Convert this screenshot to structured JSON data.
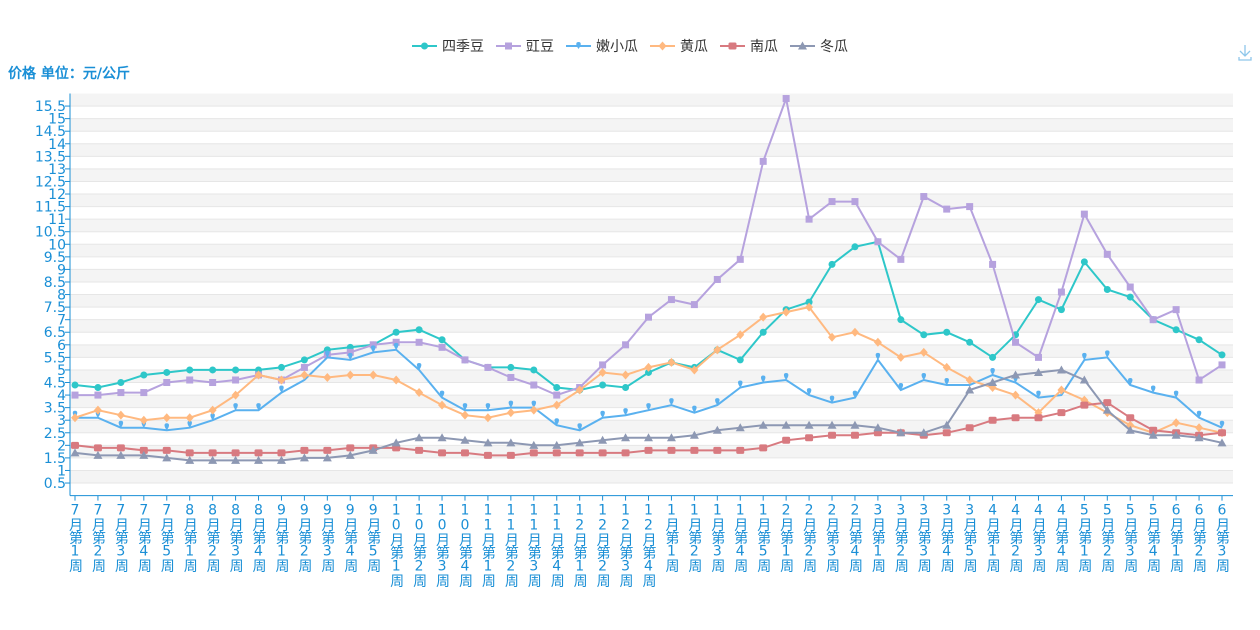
{
  "chart_data": {
    "type": "line",
    "y_axis_label": "价格 单位：元/公斤",
    "legend": "top",
    "grid": true,
    "ylim": [
      0,
      16
    ],
    "yticks": [
      0.5,
      1,
      1.5,
      2,
      2.5,
      3,
      3.5,
      4,
      4.5,
      5,
      5.5,
      6,
      6.5,
      7,
      7.5,
      8,
      8.5,
      9,
      9.5,
      10,
      10.5,
      11,
      11.5,
      12,
      12.5,
      13,
      13.5,
      14,
      14.5,
      15,
      15.5
    ],
    "categories": [
      "7月第1周",
      "7月第2周",
      "7月第3周",
      "7月第4周",
      "7月第5周",
      "8月第1周",
      "8月第2周",
      "8月第3周",
      "8月第4周",
      "9月第1周",
      "9月第2周",
      "9月第3周",
      "9月第4周",
      "9月第5周",
      "10月第1周",
      "10月第2周",
      "10月第3周",
      "10月第4周",
      "11月第1周",
      "11月第2周",
      "11月第3周",
      "11月第4周",
      "12月第1周",
      "12月第2周",
      "12月第3周",
      "12月第4周",
      "1月第1周",
      "1月第2周",
      "1月第3周",
      "1月第4周",
      "1月第5周",
      "2月第1周",
      "2月第2周",
      "2月第3周",
      "2月第4周",
      "3月第1周",
      "3月第2周",
      "3月第3周",
      "3月第4周",
      "3月第5周",
      "4月第1周",
      "4月第2周",
      "4月第3周",
      "4月第4周",
      "5月第1周",
      "5月第2周",
      "5月第3周",
      "5月第4周",
      "6月第1周",
      "6月第2周",
      "6月第3周"
    ],
    "series": [
      {
        "name": "四季豆",
        "color": "#2ec7c9",
        "marker": "circle",
        "values": [
          4.4,
          4.3,
          4.5,
          4.8,
          4.9,
          5.0,
          5.0,
          5.0,
          5.0,
          5.1,
          5.4,
          5.8,
          5.9,
          6.0,
          6.5,
          6.6,
          6.2,
          5.4,
          5.1,
          5.1,
          5.0,
          4.3,
          4.2,
          4.4,
          4.3,
          4.9,
          5.3,
          5.1,
          5.8,
          5.4,
          6.5,
          7.4,
          7.7,
          9.2,
          9.9,
          10.1,
          7.0,
          6.4,
          6.5,
          6.1,
          5.5,
          6.4,
          7.8,
          7.4,
          9.3,
          8.2,
          7.9,
          7.0,
          6.6,
          6.2,
          5.6
        ]
      },
      {
        "name": "豇豆",
        "color": "#b6a2de",
        "marker": "rect",
        "values": [
          4.0,
          4.0,
          4.1,
          4.1,
          4.5,
          4.6,
          4.5,
          4.6,
          4.8,
          4.6,
          5.1,
          5.6,
          5.7,
          6.0,
          6.1,
          6.1,
          5.9,
          5.4,
          5.1,
          4.7,
          4.4,
          4.0,
          4.3,
          5.2,
          6.0,
          7.1,
          7.8,
          7.6,
          8.6,
          9.4,
          13.3,
          15.8,
          11.0,
          11.7,
          11.7,
          10.1,
          9.4,
          11.9,
          11.4,
          11.5,
          9.2,
          6.1,
          5.5,
          8.1,
          11.2,
          9.6,
          8.3,
          7.0,
          7.4,
          4.6,
          5.2
        ]
      },
      {
        "name": "嫩小瓜",
        "color": "#5ab1ef",
        "marker": "pin",
        "values": [
          3.1,
          3.1,
          2.7,
          2.7,
          2.6,
          2.7,
          3.0,
          3.4,
          3.4,
          4.1,
          4.6,
          5.5,
          5.4,
          5.7,
          5.8,
          5.0,
          3.9,
          3.4,
          3.4,
          3.5,
          3.5,
          2.8,
          2.6,
          3.1,
          3.2,
          3.4,
          3.6,
          3.3,
          3.6,
          4.3,
          4.5,
          4.6,
          4.0,
          3.7,
          3.9,
          5.4,
          4.2,
          4.6,
          4.4,
          4.4,
          4.8,
          4.5,
          3.9,
          4.0,
          5.4,
          5.5,
          4.4,
          4.1,
          3.9,
          3.1,
          2.7
        ]
      },
      {
        "name": "黄瓜",
        "color": "#ffb980",
        "marker": "diamond",
        "values": [
          3.1,
          3.4,
          3.2,
          3.0,
          3.1,
          3.1,
          3.4,
          4.0,
          4.8,
          4.6,
          4.8,
          4.7,
          4.8,
          4.8,
          4.6,
          4.1,
          3.6,
          3.2,
          3.1,
          3.3,
          3.4,
          3.6,
          4.2,
          4.9,
          4.8,
          5.1,
          5.3,
          5.0,
          5.8,
          6.4,
          7.1,
          7.3,
          7.5,
          6.3,
          6.5,
          6.1,
          5.5,
          5.7,
          5.1,
          4.6,
          4.3,
          4.0,
          3.3,
          4.2,
          3.8,
          3.3,
          2.8,
          2.5,
          2.9,
          2.7,
          2.5
        ]
      },
      {
        "name": "南瓜",
        "color": "#d87a80",
        "marker": "roundrect",
        "values": [
          2.0,
          1.9,
          1.9,
          1.8,
          1.8,
          1.7,
          1.7,
          1.7,
          1.7,
          1.7,
          1.8,
          1.8,
          1.9,
          1.9,
          1.9,
          1.8,
          1.7,
          1.7,
          1.6,
          1.6,
          1.7,
          1.7,
          1.7,
          1.7,
          1.7,
          1.8,
          1.8,
          1.8,
          1.8,
          1.8,
          1.9,
          2.2,
          2.3,
          2.4,
          2.4,
          2.5,
          2.5,
          2.4,
          2.5,
          2.7,
          3.0,
          3.1,
          3.1,
          3.3,
          3.6,
          3.7,
          3.1,
          2.6,
          2.5,
          2.4,
          2.5
        ]
      },
      {
        "name": "冬瓜",
        "color": "#8d98b3",
        "marker": "triangle",
        "values": [
          1.7,
          1.6,
          1.6,
          1.6,
          1.5,
          1.4,
          1.4,
          1.4,
          1.4,
          1.4,
          1.5,
          1.5,
          1.6,
          1.8,
          2.1,
          2.3,
          2.3,
          2.2,
          2.1,
          2.1,
          2.0,
          2.0,
          2.1,
          2.2,
          2.3,
          2.3,
          2.3,
          2.4,
          2.6,
          2.7,
          2.8,
          2.8,
          2.8,
          2.8,
          2.8,
          2.7,
          2.5,
          2.5,
          2.8,
          4.2,
          4.5,
          4.8,
          4.9,
          5.0,
          4.6,
          3.4,
          2.6,
          2.4,
          2.4,
          2.3,
          2.1
        ]
      }
    ]
  }
}
